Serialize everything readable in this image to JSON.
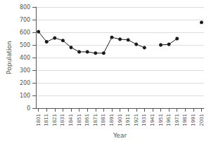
{
  "chart_data": {
    "type": "line",
    "x": [
      1801,
      1811,
      1821,
      1831,
      1841,
      1851,
      1861,
      1871,
      1881,
      1891,
      1901,
      1911,
      1921,
      1931,
      1941,
      1951,
      1961,
      1971,
      1981,
      1991,
      2001
    ],
    "values": [
      605,
      525,
      555,
      535,
      480,
      445,
      445,
      435,
      435,
      560,
      545,
      540,
      505,
      478,
      null,
      500,
      505,
      550,
      null,
      null,
      678
    ],
    "xlabel": "Year",
    "ylabel": "Population",
    "xlim": [
      1798,
      2004
    ],
    "xticks": [
      1801,
      1811,
      1821,
      1831,
      1841,
      1851,
      1861,
      1871,
      1881,
      1891,
      1901,
      1911,
      1921,
      1931,
      1941,
      1951,
      1961,
      1971,
      1981,
      1991,
      2001
    ],
    "ylim": [
      0,
      800
    ],
    "yticks": [
      0,
      100,
      200,
      300,
      400,
      500,
      600,
      700,
      800
    ],
    "color": "#1a1a1a",
    "marker": "circle",
    "grid": true
  }
}
